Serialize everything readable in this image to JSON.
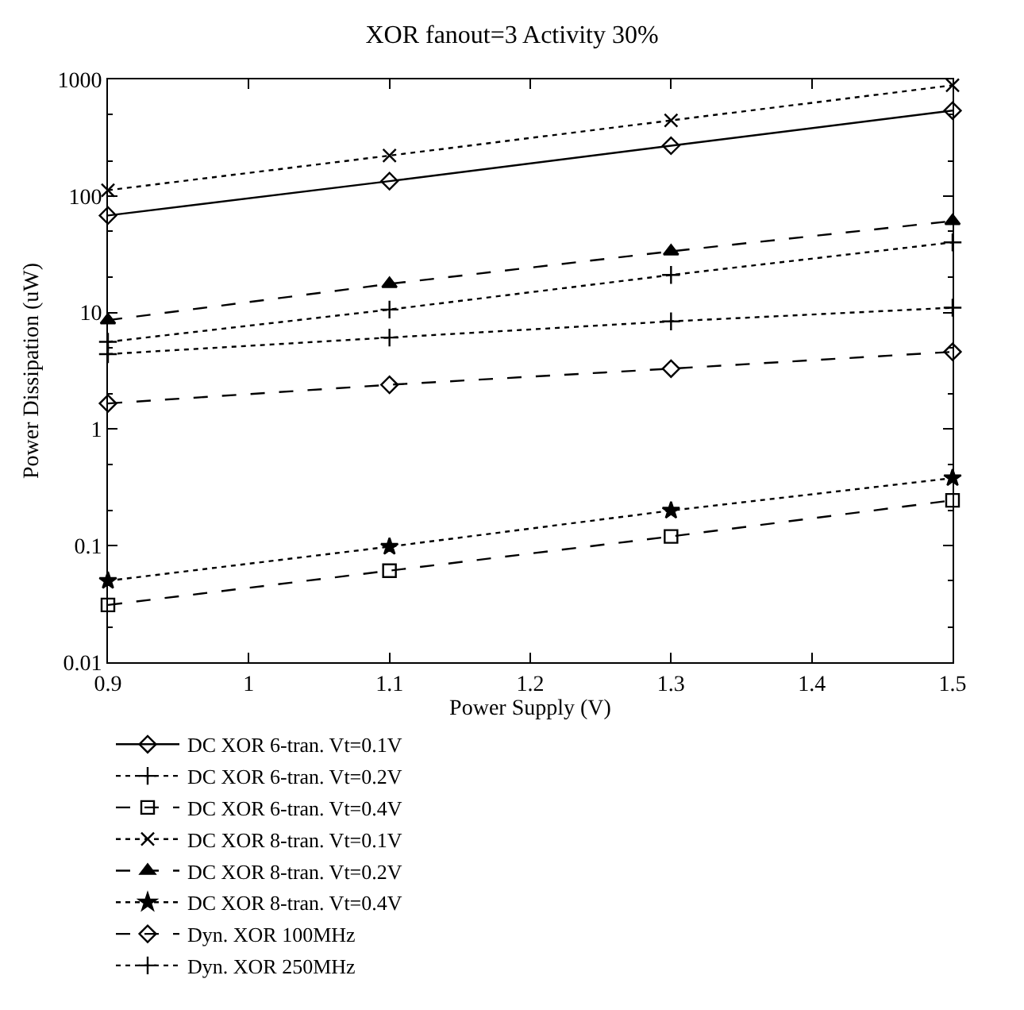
{
  "chart_data": {
    "type": "line",
    "title": "XOR fanout=3 Activity 30%",
    "xlabel": "Power Supply (V)",
    "ylabel": "Power Dissipation (uW)",
    "x": [
      0.9,
      1.1,
      1.3,
      1.5
    ],
    "series": [
      {
        "name": "DC XOR 6-tran. Vt=0.1V",
        "color": "#000000",
        "values": [
          68,
          134,
          270,
          540
        ],
        "marker": "diamond",
        "line_style": "solid"
      },
      {
        "name": "DC XOR 6-tran. Vt=0.2V",
        "color": "#000000",
        "values": [
          5.6,
          10.6,
          21,
          40
        ],
        "marker": "cross",
        "line_style": "dotted"
      },
      {
        "name": "DC XOR 6-tran. Vt=0.4V",
        "color": "#000000",
        "values": [
          0.031,
          0.061,
          0.12,
          0.245
        ],
        "marker": "square",
        "line_style": "dashed"
      },
      {
        "name": "DC XOR 8-tran. Vt=0.1V",
        "color": "#000000",
        "values": [
          112,
          222,
          445,
          890
        ],
        "marker": "x",
        "line_style": "dotted"
      },
      {
        "name": "DC XOR 8-tran. Vt=0.2V",
        "color": "#000000",
        "values": [
          8.6,
          17.6,
          33.5,
          61
        ],
        "marker": "triangle",
        "line_style": "dashed"
      },
      {
        "name": "DC XOR 8-tran. Vt=0.4V",
        "color": "#000000",
        "values": [
          0.05,
          0.098,
          0.2,
          0.38
        ],
        "marker": "star",
        "line_style": "dotted"
      },
      {
        "name": "Dyn. XOR 100MHz",
        "color": "#000000",
        "values": [
          1.66,
          2.4,
          3.3,
          4.6
        ],
        "marker": "diamond",
        "line_style": "dashed"
      },
      {
        "name": "Dyn. XOR 250MHz",
        "color": "#000000",
        "values": [
          4.4,
          6.1,
          8.4,
          11
        ],
        "marker": "cross",
        "line_style": "dotted"
      }
    ],
    "xlim": [
      0.9,
      1.5
    ],
    "xticks": [
      {
        "value": 0.9,
        "label": "0.9"
      },
      1,
      1.1,
      1.2,
      1.3,
      1.4,
      1.5
    ],
    "ylim": [
      0.01,
      1000
    ],
    "yticks": [
      0.01,
      0.1,
      1,
      10,
      100,
      1000
    ],
    "log": "y",
    "grid": false,
    "legend": "bottom"
  }
}
